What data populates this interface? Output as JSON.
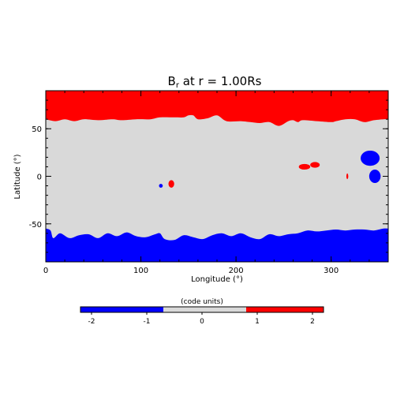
{
  "chart_data": {
    "type": "heatmap",
    "title": {
      "main": "B",
      "sub": "r",
      "rest": " at r = 1.00Rs"
    },
    "xlabel": "Longitude (°)",
    "ylabel": "Latitude (°)",
    "xlim": [
      0,
      360
    ],
    "ylim": [
      -90,
      90
    ],
    "x_ticks": [
      0,
      100,
      200,
      300
    ],
    "y_ticks": [
      50,
      0,
      -50
    ],
    "colors": {
      "positive": "#ff0000",
      "negative": "#0000ff",
      "neutral": "#d9d9d9"
    },
    "regions": {
      "north_polar_boundary_lat": [
        [
          0,
          60
        ],
        [
          10,
          58
        ],
        [
          20,
          60
        ],
        [
          30,
          58
        ],
        [
          40,
          60
        ],
        [
          55,
          59
        ],
        [
          70,
          60
        ],
        [
          80,
          59
        ],
        [
          95,
          60
        ],
        [
          110,
          60
        ],
        [
          120,
          62
        ],
        [
          135,
          62
        ],
        [
          145,
          62
        ],
        [
          150,
          64
        ],
        [
          155,
          64
        ],
        [
          160,
          60
        ],
        [
          170,
          61
        ],
        [
          180,
          64
        ],
        [
          190,
          58
        ],
        [
          205,
          58
        ],
        [
          215,
          57
        ],
        [
          225,
          56
        ],
        [
          235,
          57
        ],
        [
          245,
          53
        ],
        [
          255,
          58
        ],
        [
          260,
          59
        ],
        [
          265,
          57
        ],
        [
          270,
          59
        ],
        [
          285,
          58
        ],
        [
          300,
          57
        ],
        [
          305,
          58
        ],
        [
          315,
          60
        ],
        [
          325,
          60
        ],
        [
          335,
          57
        ],
        [
          345,
          59
        ],
        [
          355,
          60
        ],
        [
          360,
          60
        ]
      ],
      "south_polar_boundary_lat": [
        [
          0,
          -55
        ],
        [
          5,
          -57
        ],
        [
          8,
          -65
        ],
        [
          15,
          -60
        ],
        [
          25,
          -65
        ],
        [
          35,
          -62
        ],
        [
          45,
          -61
        ],
        [
          55,
          -65
        ],
        [
          65,
          -60
        ],
        [
          75,
          -63
        ],
        [
          85,
          -59
        ],
        [
          95,
          -63
        ],
        [
          105,
          -64
        ],
        [
          115,
          -61
        ],
        [
          120,
          -60
        ],
        [
          125,
          -66
        ],
        [
          135,
          -67
        ],
        [
          145,
          -62
        ],
        [
          155,
          -64
        ],
        [
          165,
          -66
        ],
        [
          175,
          -62
        ],
        [
          185,
          -60
        ],
        [
          195,
          -63
        ],
        [
          205,
          -60
        ],
        [
          215,
          -64
        ],
        [
          225,
          -66
        ],
        [
          235,
          -61
        ],
        [
          245,
          -63
        ],
        [
          255,
          -61
        ],
        [
          265,
          -60
        ],
        [
          275,
          -57
        ],
        [
          285,
          -58
        ],
        [
          295,
          -57
        ],
        [
          305,
          -56
        ],
        [
          315,
          -57
        ],
        [
          325,
          -56
        ],
        [
          335,
          -56
        ],
        [
          345,
          -57
        ],
        [
          355,
          -55
        ],
        [
          360,
          -55
        ]
      ],
      "blobs": [
        {
          "sign": "negative",
          "center": [
            341,
            19
          ],
          "radius": [
            10,
            8
          ]
        },
        {
          "sign": "negative",
          "center": [
            346,
            0
          ],
          "radius": [
            6,
            7
          ]
        },
        {
          "sign": "negative",
          "center": [
            121,
            -10
          ],
          "radius": [
            2,
            2
          ]
        },
        {
          "sign": "positive",
          "center": [
            132,
            -8
          ],
          "radius": [
            3,
            4
          ]
        },
        {
          "sign": "positive",
          "center": [
            272,
            10
          ],
          "radius": [
            6,
            3
          ]
        },
        {
          "sign": "positive",
          "center": [
            283,
            12
          ],
          "radius": [
            5,
            3
          ]
        },
        {
          "sign": "positive",
          "center": [
            317,
            0
          ],
          "radius": [
            1,
            3
          ]
        }
      ]
    },
    "colorbar": {
      "label": "(code units)",
      "range": [
        -2.2,
        2.2
      ],
      "ticks": [
        -2,
        -1,
        0,
        1,
        2
      ],
      "tick_labels": [
        "-2",
        "-1",
        "0",
        "1",
        "2"
      ],
      "segments": [
        {
          "from": -2.2,
          "to": -0.7,
          "color": "#0000ff"
        },
        {
          "from": -0.7,
          "to": 0.8,
          "color": "#d9d9d9"
        },
        {
          "from": 0.8,
          "to": 2.2,
          "color": "#ff0000"
        }
      ]
    }
  }
}
